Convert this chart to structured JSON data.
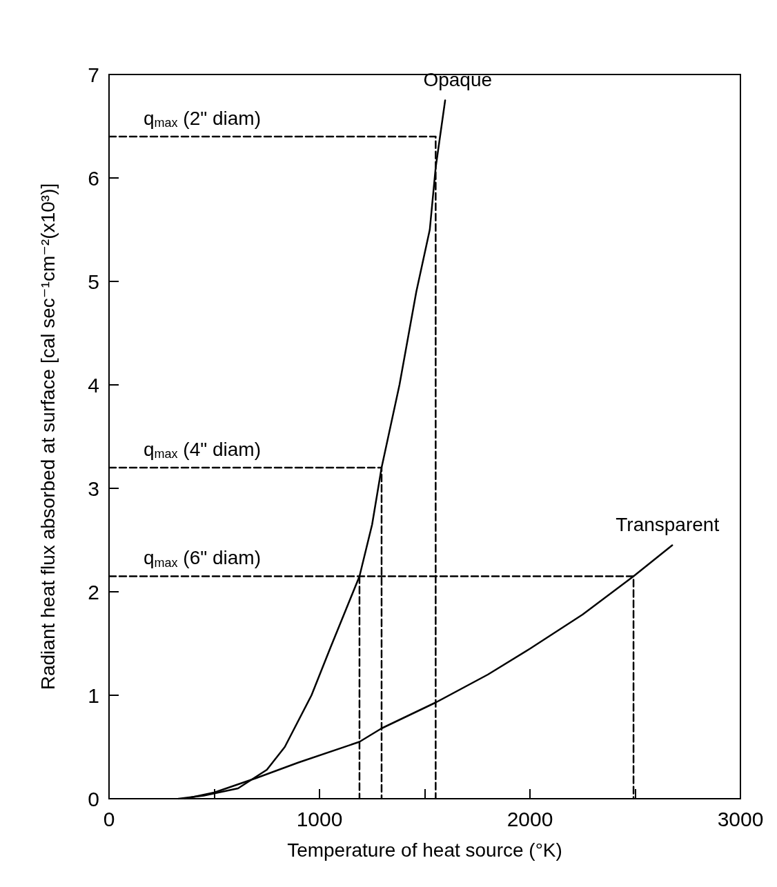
{
  "chart_data": {
    "type": "line",
    "xlabel": "Temperature of heat source (°K)",
    "ylabel": "Radiant heat flux absorbed at surface [cal sec⁻¹cm⁻²(x10³)]",
    "xlim": [
      0,
      3000
    ],
    "ylim": [
      0,
      7
    ],
    "xticks": [
      0,
      {
        "value": 500,
        "label": null
      },
      1000,
      {
        "value": 1500,
        "label": null
      },
      2000,
      {
        "value": 2500,
        "label": null
      },
      3000
    ],
    "yticks": [
      0,
      1,
      2,
      3,
      4,
      5,
      6,
      7
    ],
    "grid": false,
    "legend": false,
    "marker": "none",
    "series": [
      {
        "name": "Opaque",
        "color": "#000000",
        "line_style": "solid",
        "x": [
          330,
          450,
          613,
          750,
          835,
          962,
          1050,
          1130,
          1190,
          1250,
          1295,
          1380,
          1460,
          1524,
          1552,
          1597
        ],
        "values": [
          0,
          0.03,
          0.1,
          0.28,
          0.5,
          1.0,
          1.45,
          1.85,
          2.15,
          2.65,
          3.2,
          4.0,
          4.9,
          5.5,
          6.1,
          6.75
        ]
      },
      {
        "name": "Transparent",
        "color": "#000000",
        "line_style": "solid",
        "x": [
          360,
          500,
          700,
          900,
          1190,
          1295,
          1552,
          1800,
          2000,
          2250,
          2492,
          2676
        ],
        "values": [
          0,
          0.06,
          0.2,
          0.35,
          0.55,
          0.68,
          0.93,
          1.2,
          1.45,
          1.78,
          2.15,
          2.45
        ]
      },
      {
        "name": "q$_{max}$ (2\" diam)",
        "color": "#000000",
        "line_style": "dashed",
        "x": [
          0,
          1552,
          1552
        ],
        "values": [
          6.4,
          6.4,
          0
        ]
      },
      {
        "name": "q$_{max}$ (4\" diam)",
        "color": "#000000",
        "line_style": "dashed",
        "x": [
          0,
          1295,
          1295
        ],
        "values": [
          3.2,
          3.2,
          0
        ]
      },
      {
        "name": "q$_{max}$ (6\" diam)",
        "color": "#000000",
        "line_style": "dashed",
        "x": [
          0,
          2492,
          2492
        ],
        "values": [
          2.15,
          2.15,
          0
        ]
      },
      {
        "color": "#000000",
        "line_style": "dashed",
        "x": [
          1190,
          1190
        ],
        "values": [
          2.15,
          0
        ]
      }
    ]
  }
}
